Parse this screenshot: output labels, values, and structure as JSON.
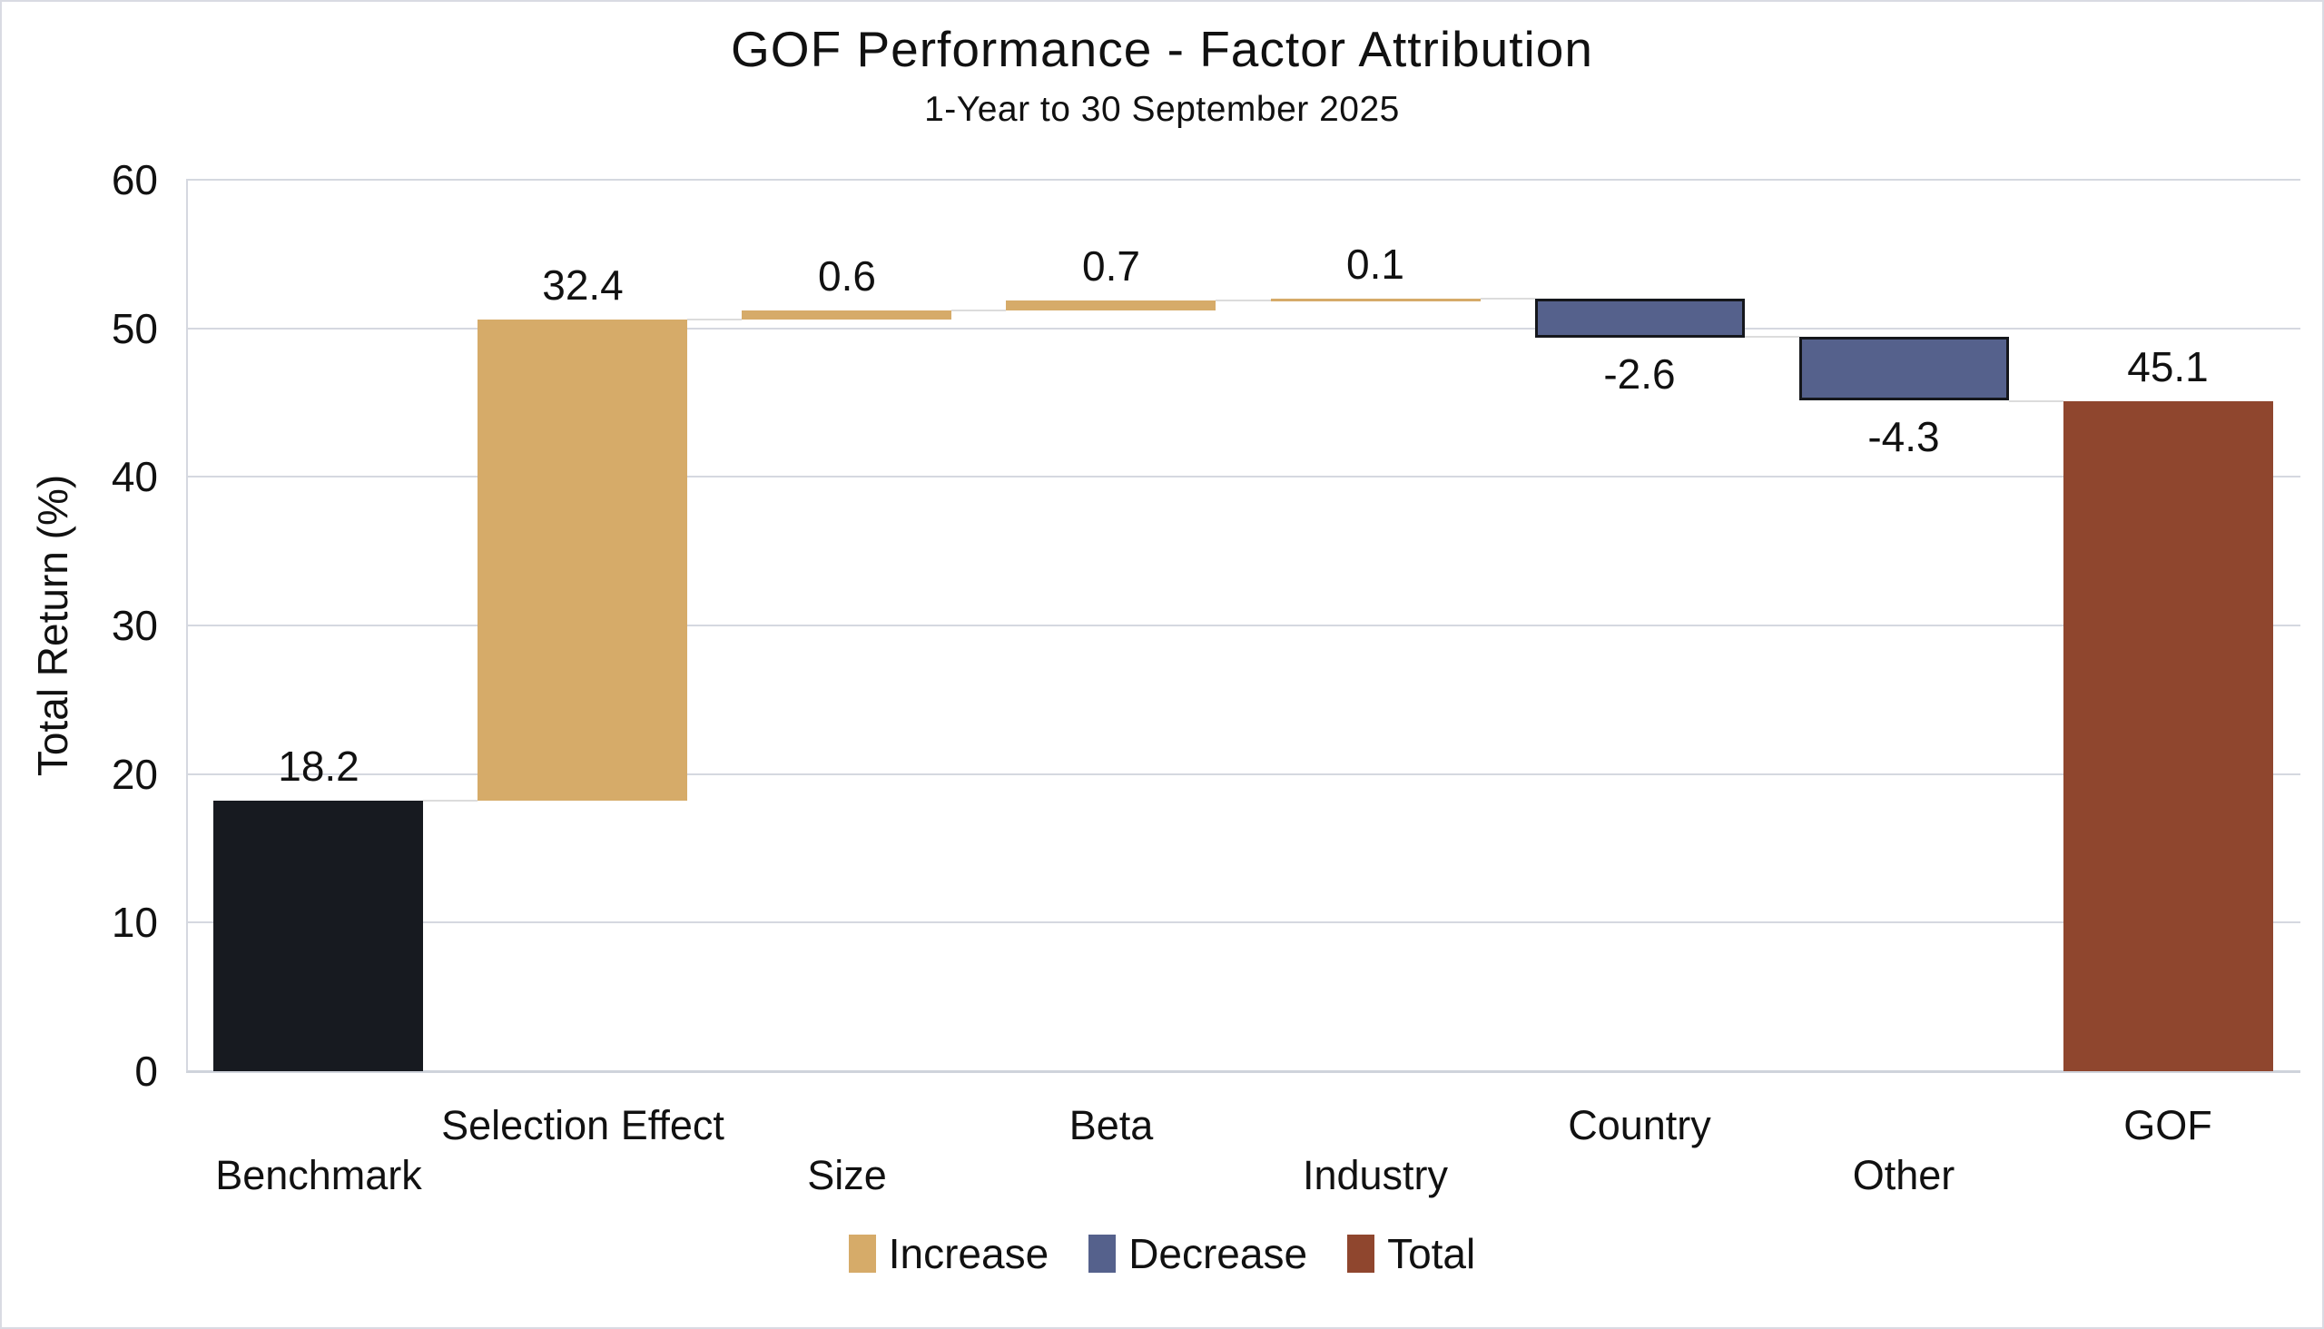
{
  "page": {
    "background": "#ffffff",
    "frame_border_color": "#d9dbe3"
  },
  "chart_data": {
    "type": "bar",
    "subtype": "waterfall",
    "title": "GOF Performance - Factor Attribution",
    "subtitle": "1-Year to 30 September 2025",
    "xlabel": "",
    "ylabel": "Total Return (%)",
    "ylim": [
      0,
      60
    ],
    "yticks": [
      0,
      10,
      20,
      30,
      40,
      50,
      60
    ],
    "grid": "horizontal",
    "legend_position": "bottom",
    "categories": [
      "Benchmark",
      "Selection Effect",
      "Size",
      "Beta",
      "Industry",
      "Country",
      "Other",
      "GOF"
    ],
    "steps": [
      {
        "label": "Benchmark",
        "kind": "base",
        "value": 18.2,
        "display": "18.2",
        "start": 0,
        "end": 18.2
      },
      {
        "label": "Selection Effect",
        "kind": "increase",
        "value": 32.4,
        "display": "32.4",
        "start": 18.2,
        "end": 50.6
      },
      {
        "label": "Size",
        "kind": "increase",
        "value": 0.6,
        "display": "0.6",
        "start": 50.6,
        "end": 51.2
      },
      {
        "label": "Beta",
        "kind": "increase",
        "value": 0.7,
        "display": "0.7",
        "start": 51.2,
        "end": 51.9
      },
      {
        "label": "Industry",
        "kind": "increase",
        "value": 0.1,
        "display": "0.1",
        "start": 51.9,
        "end": 52.0
      },
      {
        "label": "Country",
        "kind": "decrease",
        "value": -2.6,
        "display": "-2.6",
        "start": 52.0,
        "end": 49.4
      },
      {
        "label": "Other",
        "kind": "decrease",
        "value": -4.3,
        "display": "-4.3",
        "start": 49.4,
        "end": 45.1
      },
      {
        "label": "GOF",
        "kind": "total",
        "value": 45.1,
        "display": "45.1",
        "start": 0,
        "end": 45.1
      }
    ],
    "legend": [
      {
        "label": "Increase",
        "color": "#d6ab69"
      },
      {
        "label": "Decrease",
        "color": "#55618c"
      },
      {
        "label": "Total",
        "color": "#8f462e"
      }
    ]
  },
  "colors": {
    "base_bar": "#171a20",
    "increase": "#d6ab69",
    "decrease": "#55618c",
    "decrease_border": "#15171c",
    "total": "#8f462e",
    "gridline": "#d5d8e0",
    "baseline": "#cfd3db",
    "connector": "#dcdcdc",
    "text": "#111111"
  }
}
